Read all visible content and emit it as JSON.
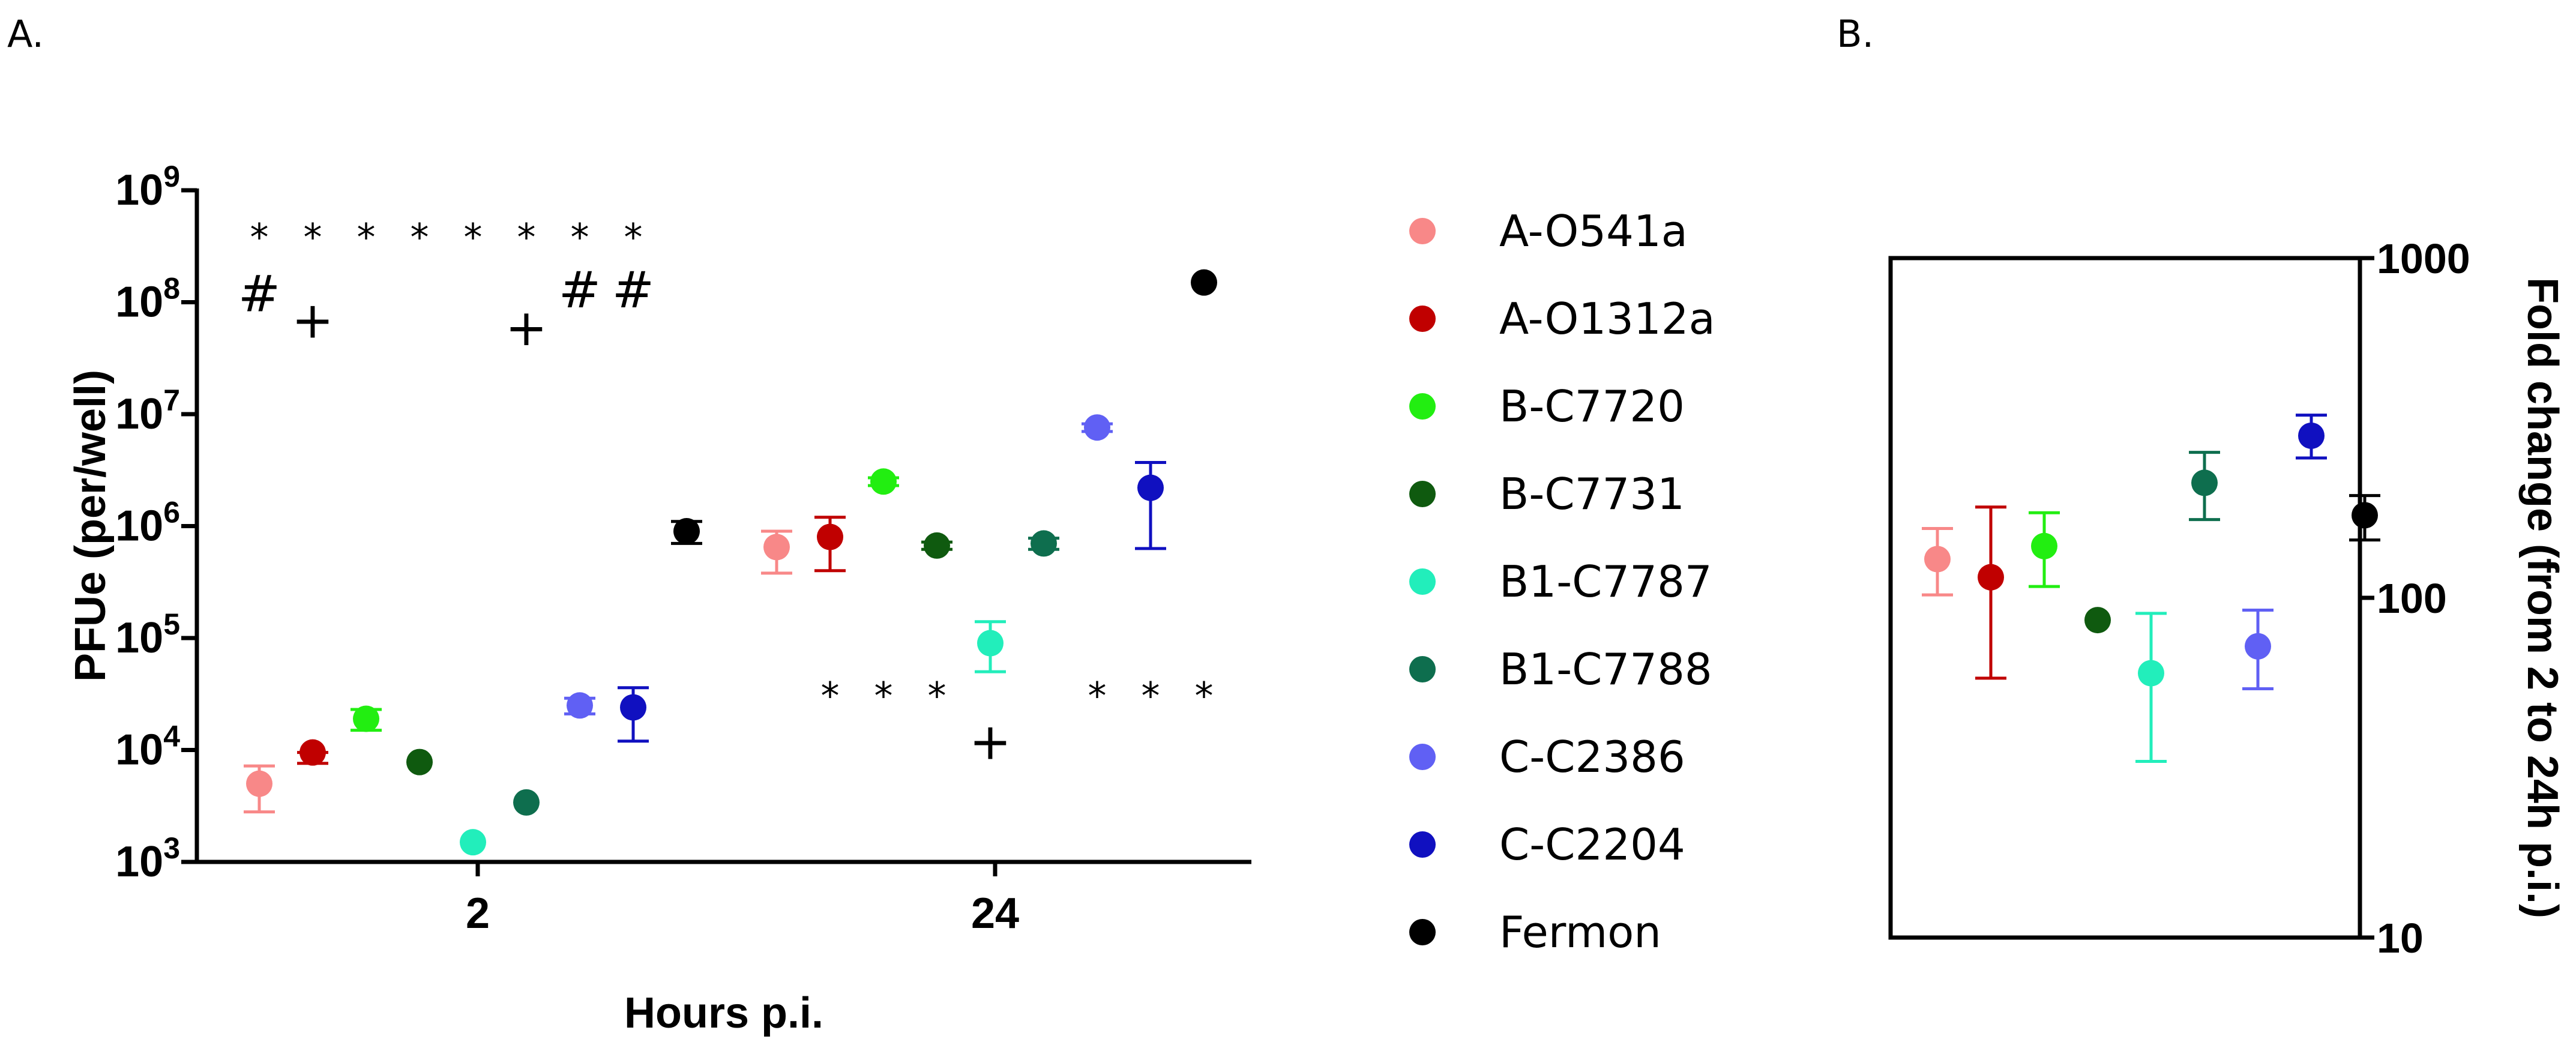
{
  "panels": {
    "a_label": "A.",
    "b_label": "B."
  },
  "chart_data": [
    {
      "id": "A",
      "type": "scatter",
      "title": "",
      "xlabel": "Hours p.i.",
      "ylabel": "PFUe  (per/well)",
      "yscale": "log",
      "ylim": [
        1000,
        1000000000
      ],
      "ytick_exponents": [
        "3",
        "4",
        "5",
        "6",
        "7",
        "8",
        "9"
      ],
      "ytick_base": "10",
      "x_groups": [
        "2",
        "24"
      ],
      "series": [
        {
          "name": "A-O541a",
          "color": "#F88888",
          "values": [
            5000,
            650000
          ],
          "err_low": [
            2800,
            380000
          ],
          "err_high": [
            7200,
            900000
          ]
        },
        {
          "name": "A-O1312a",
          "color": "#C00000",
          "values": [
            9500,
            800000
          ],
          "err_low": [
            7600,
            400000
          ],
          "err_high": [
            9500,
            1200000
          ]
        },
        {
          "name": "B-C7720",
          "color": "#22EE11",
          "values": [
            19000,
            2500000
          ],
          "err_low": [
            15000,
            2300000
          ],
          "err_high": [
            23000,
            2700000
          ]
        },
        {
          "name": "B-C7731",
          "color": "#0F5A0F",
          "values": [
            7800,
            670000
          ],
          "err_low": [
            7800,
            620000
          ],
          "err_high": [
            7800,
            720000
          ]
        },
        {
          "name": "B1-C7787",
          "color": "#22EEBB",
          "values": [
            1500,
            90000
          ],
          "err_low": [
            1500,
            50000
          ],
          "err_high": [
            1500,
            140000
          ]
        },
        {
          "name": "B1-C7788",
          "color": "#0E6E4E",
          "values": [
            3400,
            700000
          ],
          "err_low": [
            3400,
            620000
          ],
          "err_high": [
            3400,
            780000
          ]
        },
        {
          "name": "C-C2386",
          "color": "#6060F4",
          "values": [
            25000,
            7600000
          ],
          "err_low": [
            21000,
            7000000
          ],
          "err_high": [
            29000,
            8200000
          ]
        },
        {
          "name": "C-C2204",
          "color": "#1010C0",
          "values": [
            24000,
            2200000
          ],
          "err_low": [
            12000,
            630000
          ],
          "err_high": [
            36000,
            3700000
          ]
        },
        {
          "name": "Fermon",
          "color": "#000000",
          "values": [
            900000,
            150000000
          ],
          "err_low": [
            700000,
            150000000
          ],
          "err_high": [
            1100000,
            150000000
          ]
        }
      ],
      "annotations": [
        {
          "text": "*",
          "group": 0,
          "series": 0,
          "y": 500000000
        },
        {
          "text": "*",
          "group": 0,
          "series": 1,
          "y": 500000000
        },
        {
          "text": "*",
          "group": 0,
          "series": 2,
          "y": 500000000
        },
        {
          "text": "*",
          "group": 0,
          "series": 3,
          "y": 500000000
        },
        {
          "text": "*",
          "group": 0,
          "series": 4,
          "y": 500000000
        },
        {
          "text": "*",
          "group": 0,
          "series": 5,
          "y": 500000000
        },
        {
          "text": "*",
          "group": 0,
          "series": 6,
          "y": 500000000
        },
        {
          "text": "*",
          "group": 0,
          "series": 7,
          "y": 500000000
        },
        {
          "text": "#",
          "group": 0,
          "series": 0,
          "y": 120000000
        },
        {
          "text": "+",
          "group": 0,
          "series": 1,
          "y": 70000000
        },
        {
          "text": "+",
          "group": 0,
          "series": 5,
          "y": 60000000
        },
        {
          "text": "#",
          "group": 0,
          "series": 6,
          "y": 130000000
        },
        {
          "text": "#",
          "group": 0,
          "series": 7,
          "y": 130000000
        },
        {
          "text": "*",
          "group": 1,
          "series": 1,
          "y": 40000
        },
        {
          "text": "*",
          "group": 1,
          "series": 2,
          "y": 40000
        },
        {
          "text": "*",
          "group": 1,
          "series": 3,
          "y": 40000
        },
        {
          "text": "*",
          "group": 1,
          "series": 6,
          "y": 40000
        },
        {
          "text": "*",
          "group": 1,
          "series": 7,
          "y": 40000
        },
        {
          "text": "*",
          "group": 1,
          "series": 8,
          "y": 40000
        },
        {
          "text": "+",
          "group": 1,
          "series": 4,
          "y": 12000
        }
      ]
    },
    {
      "id": "B",
      "type": "scatter",
      "title": "",
      "xlabel": "",
      "ylabel": "Fold change (from 2 to 24h p.i.)",
      "yscale": "log",
      "ylim": [
        10,
        1000
      ],
      "yticks": [
        "10",
        "100",
        "1000"
      ],
      "series": [
        {
          "name": "A-O541a",
          "color": "#F88888",
          "value": 130,
          "err_low": 102,
          "err_high": 160
        },
        {
          "name": "A-O1312a",
          "color": "#C00000",
          "value": 115,
          "err_low": 58,
          "err_high": 185
        },
        {
          "name": "B-C7720",
          "color": "#22EE11",
          "value": 142,
          "err_low": 108,
          "err_high": 178
        },
        {
          "name": "B-C7731",
          "color": "#0F5A0F",
          "value": 86,
          "err_low": 86,
          "err_high": 86
        },
        {
          "name": "B1-C7787",
          "color": "#22EEBB",
          "value": 60,
          "err_low": 33,
          "err_high": 90
        },
        {
          "name": "B1-C7788",
          "color": "#0E6E4E",
          "value": 218,
          "err_low": 170,
          "err_high": 268
        },
        {
          "name": "C-C2386",
          "color": "#6060F4",
          "value": 72,
          "err_low": 54,
          "err_high": 92
        },
        {
          "name": "C-C2204",
          "color": "#1010C0",
          "value": 300,
          "err_low": 258,
          "err_high": 345
        },
        {
          "name": "Fermon",
          "color": "#000000",
          "value": 175,
          "err_low": 148,
          "err_high": 200
        }
      ]
    }
  ]
}
